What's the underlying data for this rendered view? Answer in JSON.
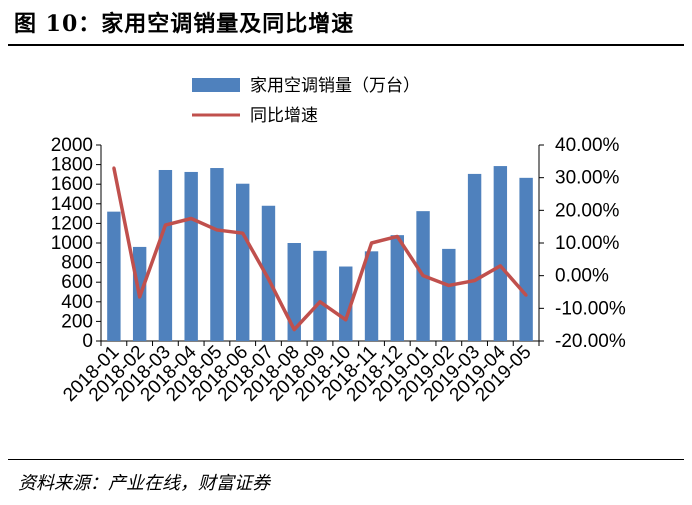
{
  "header": {
    "title": "图 10：家用空调销量及同比增速"
  },
  "footer": {
    "source": "资料来源：产业在线，财富证券"
  },
  "chart_data": {
    "type": "bar+line",
    "title": "家用空调销量及同比增速",
    "categories": [
      "2018-01",
      "2018-02",
      "2018-03",
      "2018-04",
      "2018-05",
      "2018-06",
      "2018-07",
      "2018-08",
      "2018-09",
      "2018-10",
      "2018-11",
      "2018-12",
      "2019-01",
      "2019-02",
      "2019-03",
      "2019-04",
      "2019-05"
    ],
    "series": [
      {
        "name": "家用空调销量（万台）",
        "type": "bar",
        "axis": "left",
        "color": "#4F81BD",
        "values": [
          1320,
          960,
          1745,
          1725,
          1765,
          1605,
          1380,
          1000,
          920,
          760,
          915,
          1080,
          1325,
          940,
          1705,
          1785,
          1665
        ]
      },
      {
        "name": "同比增速",
        "type": "line",
        "axis": "right",
        "color": "#C0504D",
        "values": [
          0.33,
          -0.065,
          0.155,
          0.175,
          0.14,
          0.13,
          -0.01,
          -0.165,
          -0.08,
          -0.135,
          0.1,
          0.12,
          0.0,
          -0.03,
          -0.015,
          0.03,
          -0.06
        ]
      }
    ],
    "left_axis": {
      "min": 0,
      "max": 2000,
      "ticks": [
        "0",
        "200",
        "400",
        "600",
        "800",
        "1000",
        "1200",
        "1400",
        "1600",
        "1800",
        "2000"
      ]
    },
    "right_axis": {
      "min": -0.2,
      "max": 0.4,
      "ticks": [
        "-20.00%",
        "-10.00%",
        "0.00%",
        "10.00%",
        "20.00%",
        "30.00%",
        "40.00%"
      ]
    },
    "legend": {
      "position": "top"
    }
  }
}
